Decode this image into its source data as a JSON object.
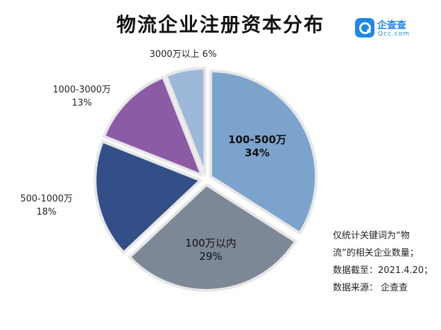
{
  "title": "物流企业注册资本分布",
  "logo": {
    "name": "企查查",
    "domain": "Qcc.com"
  },
  "chart_data": {
    "type": "pie",
    "title": "物流企业注册资本分布",
    "slices": [
      {
        "label": "100-500万",
        "value": 34,
        "value_label": "34%",
        "color": "#7ba3cc"
      },
      {
        "label": "100万以内",
        "value": 29,
        "value_label": "29%",
        "color": "#7d8896"
      },
      {
        "label": "500-1000万",
        "value": 18,
        "value_label": "18%",
        "color": "#324f87"
      },
      {
        "label": "1000-3000万",
        "value": 13,
        "value_label": "13%",
        "color": "#8c5ba6"
      },
      {
        "label": "3000万以上",
        "value": 6,
        "value_label": "6%",
        "color": "#9db9d9"
      }
    ],
    "start_angle_deg": 90,
    "direction": "clockwise",
    "exploded": true
  },
  "notes": [
    "仅统计关键词为“物",
    "流”的相关企业数量；",
    "数据截至：2021.4.20；",
    "数据来源：  企查查"
  ]
}
